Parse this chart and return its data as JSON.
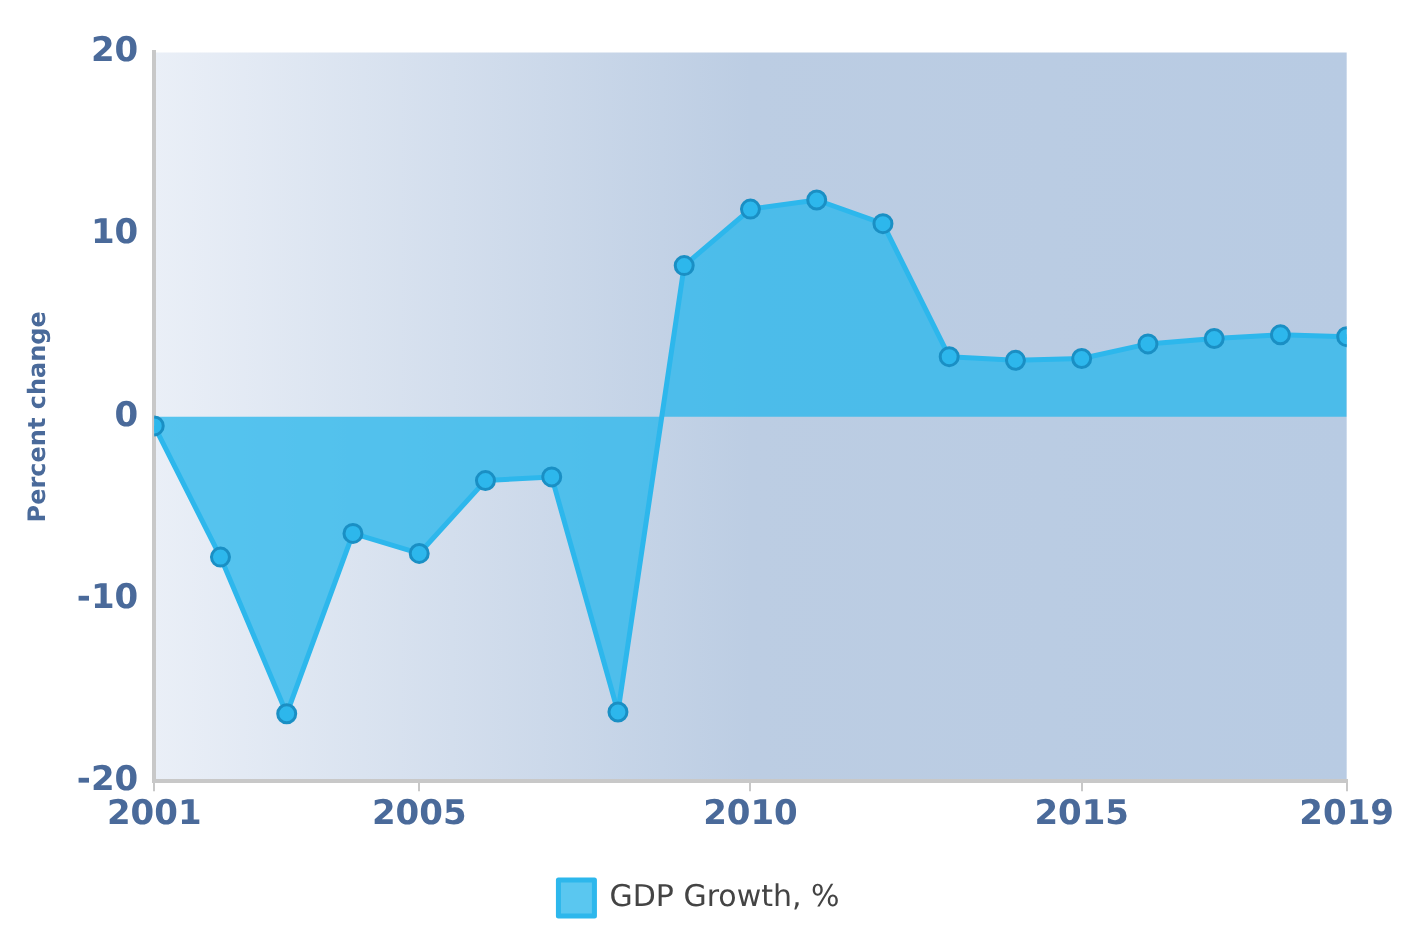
{
  "chart_data": {
    "type": "area",
    "ylabel": "Percent change",
    "x": [
      2001,
      2002,
      2003,
      2004,
      2005,
      2006,
      2007,
      2008,
      2009,
      2010,
      2011,
      2012,
      2013,
      2014,
      2015,
      2016,
      2017,
      2018,
      2019
    ],
    "series": [
      {
        "name": "GDP Growth, %",
        "color": "#2db7ec",
        "values": [
          -0.5,
          -7.7,
          -16.3,
          -6.4,
          -7.5,
          -3.5,
          -3.3,
          -16.2,
          8.3,
          11.4,
          11.9,
          10.6,
          3.3,
          3.1,
          3.2,
          4.0,
          4.3,
          4.5,
          4.4
        ]
      }
    ],
    "xlim": [
      2001,
      2019
    ],
    "xticks": [
      2001,
      2005,
      2010,
      2015,
      2019
    ],
    "ylim": [
      -20,
      20
    ],
    "yticks": [
      -20,
      -10,
      0,
      10,
      20
    ],
    "grid": false,
    "legend": "bottom",
    "marker": "circle"
  }
}
